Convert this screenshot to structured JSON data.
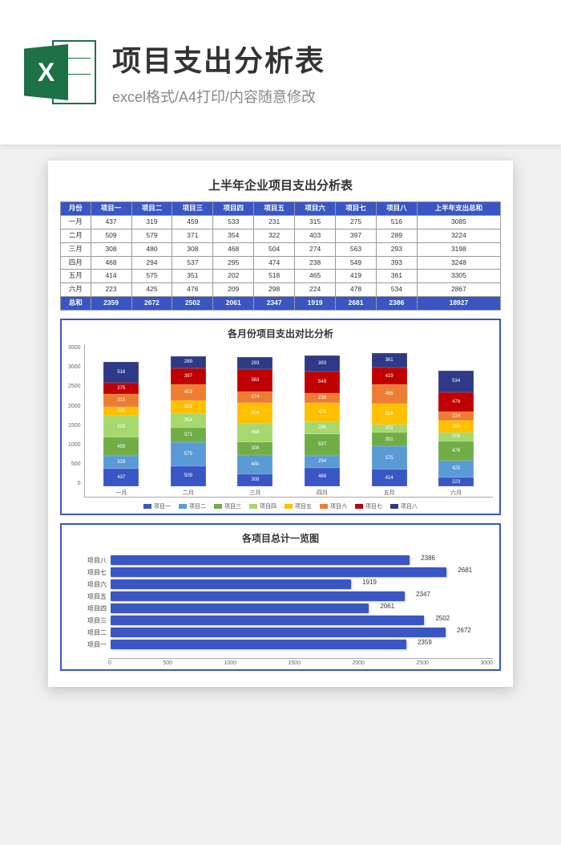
{
  "hero": {
    "title": "项目支出分析表",
    "subtitle": "excel格式/A4打印/内容随意修改",
    "icon_letter": "X",
    "icon_color": "#1e7145"
  },
  "document": {
    "title": "上半年企业项目支出分析表",
    "table": {
      "header_bg": "#3a56c4",
      "columns": [
        "月份",
        "项目一",
        "项目二",
        "项目三",
        "项目四",
        "项目五",
        "项目六",
        "项目七",
        "项目八",
        "上半年支出总和"
      ],
      "rows": [
        [
          "一月",
          437,
          319,
          459,
          533,
          231,
          315,
          275,
          516,
          3085
        ],
        [
          "二月",
          509,
          579,
          371,
          354,
          322,
          403,
          397,
          289,
          3224
        ],
        [
          "三月",
          308,
          480,
          308,
          468,
          504,
          274,
          563,
          293,
          3198
        ],
        [
          "四月",
          468,
          294,
          537,
          295,
          474,
          238,
          549,
          393,
          3248
        ],
        [
          "五月",
          414,
          575,
          351,
          202,
          518,
          465,
          419,
          361,
          3305
        ],
        [
          "六月",
          223,
          425,
          476,
          209,
          298,
          224,
          478,
          534,
          2867
        ]
      ],
      "total_row": [
        "总和",
        2359,
        2672,
        2502,
        2061,
        2347,
        1919,
        2681,
        2386,
        18927
      ]
    },
    "stacked_chart": {
      "title": "各月份项目支出对比分析",
      "type": "stacked-bar",
      "y_max": 3500,
      "y_ticks": [
        0,
        500,
        1000,
        1500,
        2000,
        2500,
        3000,
        3500
      ],
      "categories": [
        "一月",
        "二月",
        "三月",
        "四月",
        "五月",
        "六月"
      ],
      "series": [
        "项目一",
        "项目二",
        "项目三",
        "项目四",
        "项目五",
        "项目六",
        "项目七",
        "项目八"
      ],
      "colors": [
        "#3a56c4",
        "#5b9bd5",
        "#70ad47",
        "#a6d86e",
        "#ffc000",
        "#ed7d31",
        "#c00000",
        "#2e3a87"
      ],
      "data": [
        [
          437,
          319,
          459,
          533,
          231,
          315,
          275,
          516
        ],
        [
          509,
          579,
          371,
          354,
          322,
          403,
          397,
          289
        ],
        [
          308,
          480,
          308,
          468,
          504,
          274,
          563,
          293
        ],
        [
          468,
          294,
          537,
          295,
          474,
          238,
          549,
          393
        ],
        [
          414,
          575,
          351,
          202,
          518,
          465,
          419,
          361
        ],
        [
          223,
          425,
          476,
          209,
          298,
          224,
          478,
          534
        ]
      ]
    },
    "hbar_chart": {
      "title": "各项目总计一览图",
      "type": "horizontal-bar",
      "x_max": 3000,
      "x_ticks": [
        0,
        500,
        1000,
        1500,
        2000,
        2500,
        3000
      ],
      "bar_color": "#3a56c4",
      "items": [
        {
          "label": "项目八",
          "value": 2386
        },
        {
          "label": "项目七",
          "value": 2681
        },
        {
          "label": "项目六",
          "value": 1919
        },
        {
          "label": "项目五",
          "value": 2347
        },
        {
          "label": "项目四",
          "value": 2061
        },
        {
          "label": "项目三",
          "value": 2502
        },
        {
          "label": "项目二",
          "value": 2672
        },
        {
          "label": "项目一",
          "value": 2359
        }
      ]
    }
  }
}
